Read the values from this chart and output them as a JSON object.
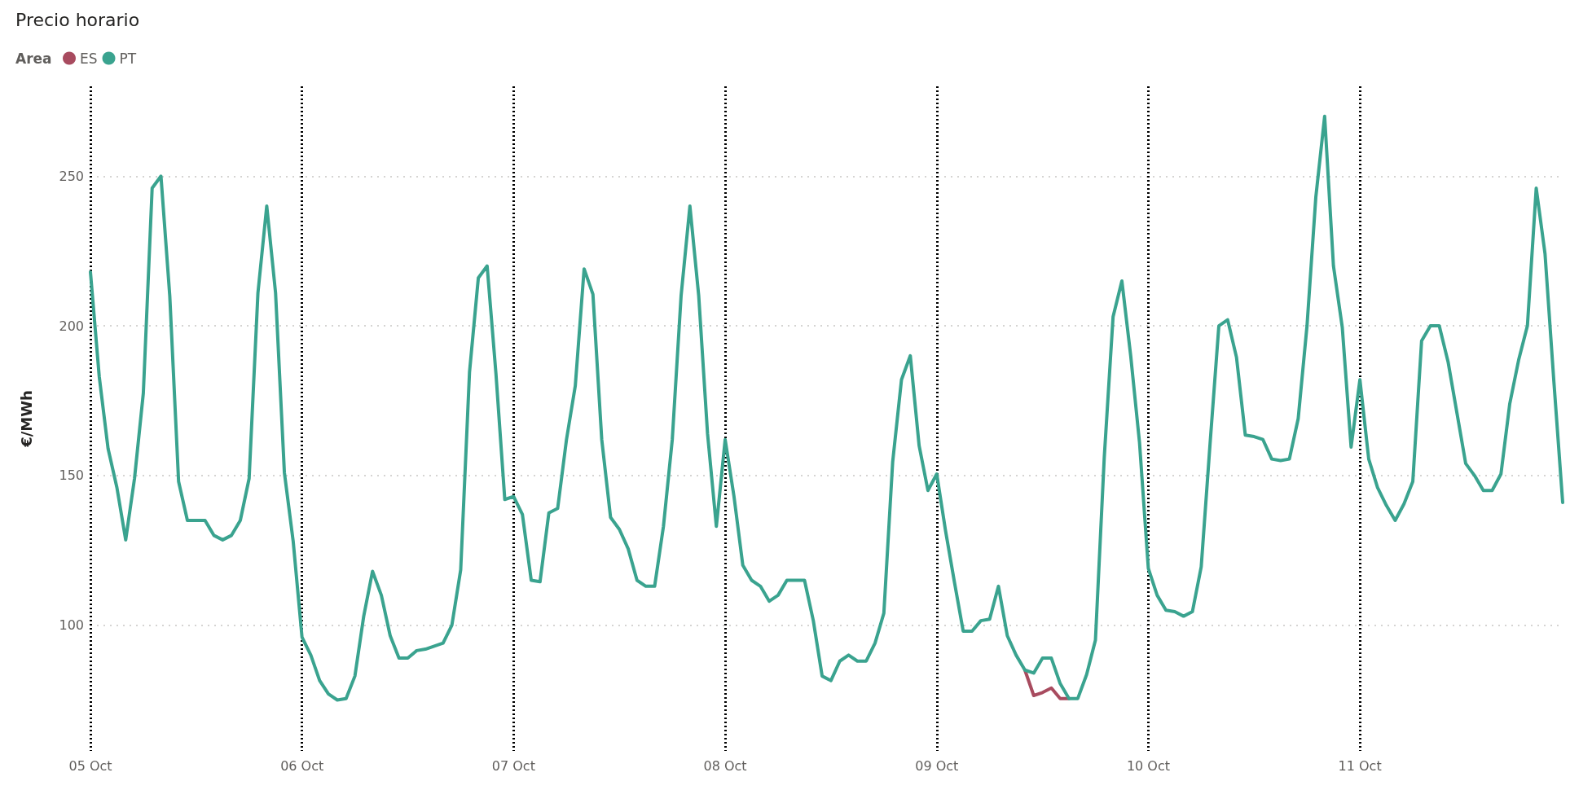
{
  "chart_data": {
    "type": "line",
    "title": "Precio horario",
    "ylabel": "€/MWh",
    "legend_title": "Area",
    "legend": "top left",
    "grid": true,
    "marker": "none",
    "line_style": "solid",
    "categories": [
      "05 Oct",
      null,
      null,
      null,
      null,
      null,
      null,
      null,
      null,
      null,
      null,
      null,
      null,
      null,
      null,
      null,
      null,
      null,
      null,
      null,
      null,
      null,
      null,
      null,
      "06 Oct",
      null,
      null,
      null,
      null,
      null,
      null,
      null,
      null,
      null,
      null,
      null,
      null,
      null,
      null,
      null,
      null,
      null,
      null,
      null,
      null,
      null,
      null,
      null,
      "07 Oct",
      null,
      null,
      null,
      null,
      null,
      null,
      null,
      null,
      null,
      null,
      null,
      null,
      null,
      null,
      null,
      null,
      null,
      null,
      null,
      null,
      null,
      null,
      null,
      "08 Oct",
      null,
      null,
      null,
      null,
      null,
      null,
      null,
      null,
      null,
      null,
      null,
      null,
      null,
      null,
      null,
      null,
      null,
      null,
      null,
      null,
      null,
      null,
      null,
      "09 Oct",
      null,
      null,
      null,
      null,
      null,
      null,
      null,
      null,
      null,
      null,
      null,
      null,
      null,
      null,
      null,
      null,
      null,
      null,
      null,
      null,
      null,
      null,
      null,
      "10 Oct",
      null,
      null,
      null,
      null,
      null,
      null,
      null,
      null,
      null,
      null,
      null,
      null,
      null,
      null,
      null,
      null,
      null,
      null,
      null,
      null,
      null,
      null,
      null,
      "11 Oct",
      null,
      null,
      null,
      null,
      null,
      null,
      null,
      null,
      null,
      null,
      null,
      null,
      null,
      null,
      null,
      null,
      null,
      null,
      null,
      null,
      null,
      null,
      null
    ],
    "ylim": [
      58,
      280
    ],
    "yticks": [
      100,
      150,
      200,
      250
    ],
    "series": [
      {
        "name": "ES",
        "color": "#a84b5f",
        "values": [
          null,
          null,
          null,
          null,
          null,
          null,
          null,
          null,
          null,
          null,
          null,
          null,
          null,
          null,
          null,
          null,
          null,
          null,
          null,
          null,
          null,
          null,
          null,
          null,
          null,
          null,
          null,
          null,
          null,
          null,
          null,
          null,
          null,
          null,
          null,
          null,
          null,
          null,
          null,
          null,
          null,
          null,
          null,
          null,
          null,
          null,
          null,
          null,
          null,
          null,
          null,
          null,
          null,
          null,
          null,
          null,
          null,
          null,
          null,
          null,
          null,
          null,
          null,
          null,
          null,
          null,
          null,
          null,
          null,
          null,
          null,
          null,
          null,
          null,
          null,
          null,
          null,
          null,
          null,
          null,
          null,
          null,
          null,
          null,
          null,
          null,
          null,
          null,
          null,
          null,
          null,
          null,
          null,
          null,
          null,
          null,
          null,
          null,
          null,
          null,
          null,
          null,
          null,
          null,
          null,
          null,
          85,
          76.5,
          77.5,
          79,
          75.5,
          75.5,
          null,
          null,
          null,
          null,
          null,
          null,
          null,
          null,
          null,
          null,
          null,
          null,
          null,
          null,
          null,
          null,
          null,
          null,
          null,
          null,
          null,
          null,
          null,
          null,
          null,
          null,
          null,
          null,
          null,
          null,
          null,
          null,
          null,
          null,
          null,
          null,
          null,
          null,
          null,
          null,
          null,
          null,
          null,
          null,
          null,
          null,
          null,
          null,
          null,
          null,
          null,
          null,
          null,
          null,
          null,
          null
        ]
      },
      {
        "name": "PT",
        "color": "#3aa38f",
        "values": [
          218,
          183,
          159,
          146,
          128.5,
          149,
          177.5,
          246,
          250,
          210,
          148,
          135,
          135,
          135,
          130,
          128.5,
          130,
          135,
          149,
          211,
          240,
          211,
          151,
          128,
          96,
          90,
          81.5,
          77,
          75,
          75.5,
          83,
          103,
          118,
          110,
          96.5,
          89,
          89,
          91.5,
          92,
          93,
          94,
          100,
          118.5,
          184.5,
          216,
          220,
          184,
          142,
          143,
          137,
          115,
          114.5,
          137.5,
          139,
          162,
          180,
          219,
          210.5,
          162,
          136,
          132,
          125.5,
          115,
          113,
          113,
          133,
          162,
          210,
          240,
          210,
          164,
          133,
          162,
          143,
          120,
          115,
          113,
          108,
          110,
          115,
          115,
          115,
          101.5,
          83,
          81.5,
          88,
          90,
          88,
          88,
          94,
          104,
          154.5,
          182,
          190,
          160,
          145,
          150.5,
          131.5,
          114.5,
          98,
          98,
          101.5,
          102,
          113,
          96.5,
          90,
          85,
          84,
          89,
          89,
          80.5,
          75.5,
          75.5,
          83.5,
          95,
          156,
          203,
          215,
          190,
          161,
          119,
          110,
          105,
          104.5,
          103,
          104.5,
          119.5,
          160.5,
          200,
          202,
          189.5,
          163.5,
          163,
          162,
          155.5,
          155,
          155.5,
          169,
          200,
          243,
          270,
          220,
          199.5,
          159.5,
          182,
          155.5,
          146,
          140,
          135,
          140.5,
          148,
          195,
          200,
          200,
          188,
          171,
          154,
          150,
          145,
          145,
          150.5,
          174,
          188.5,
          200,
          246,
          224,
          181.5,
          141
        ]
      }
    ]
  }
}
